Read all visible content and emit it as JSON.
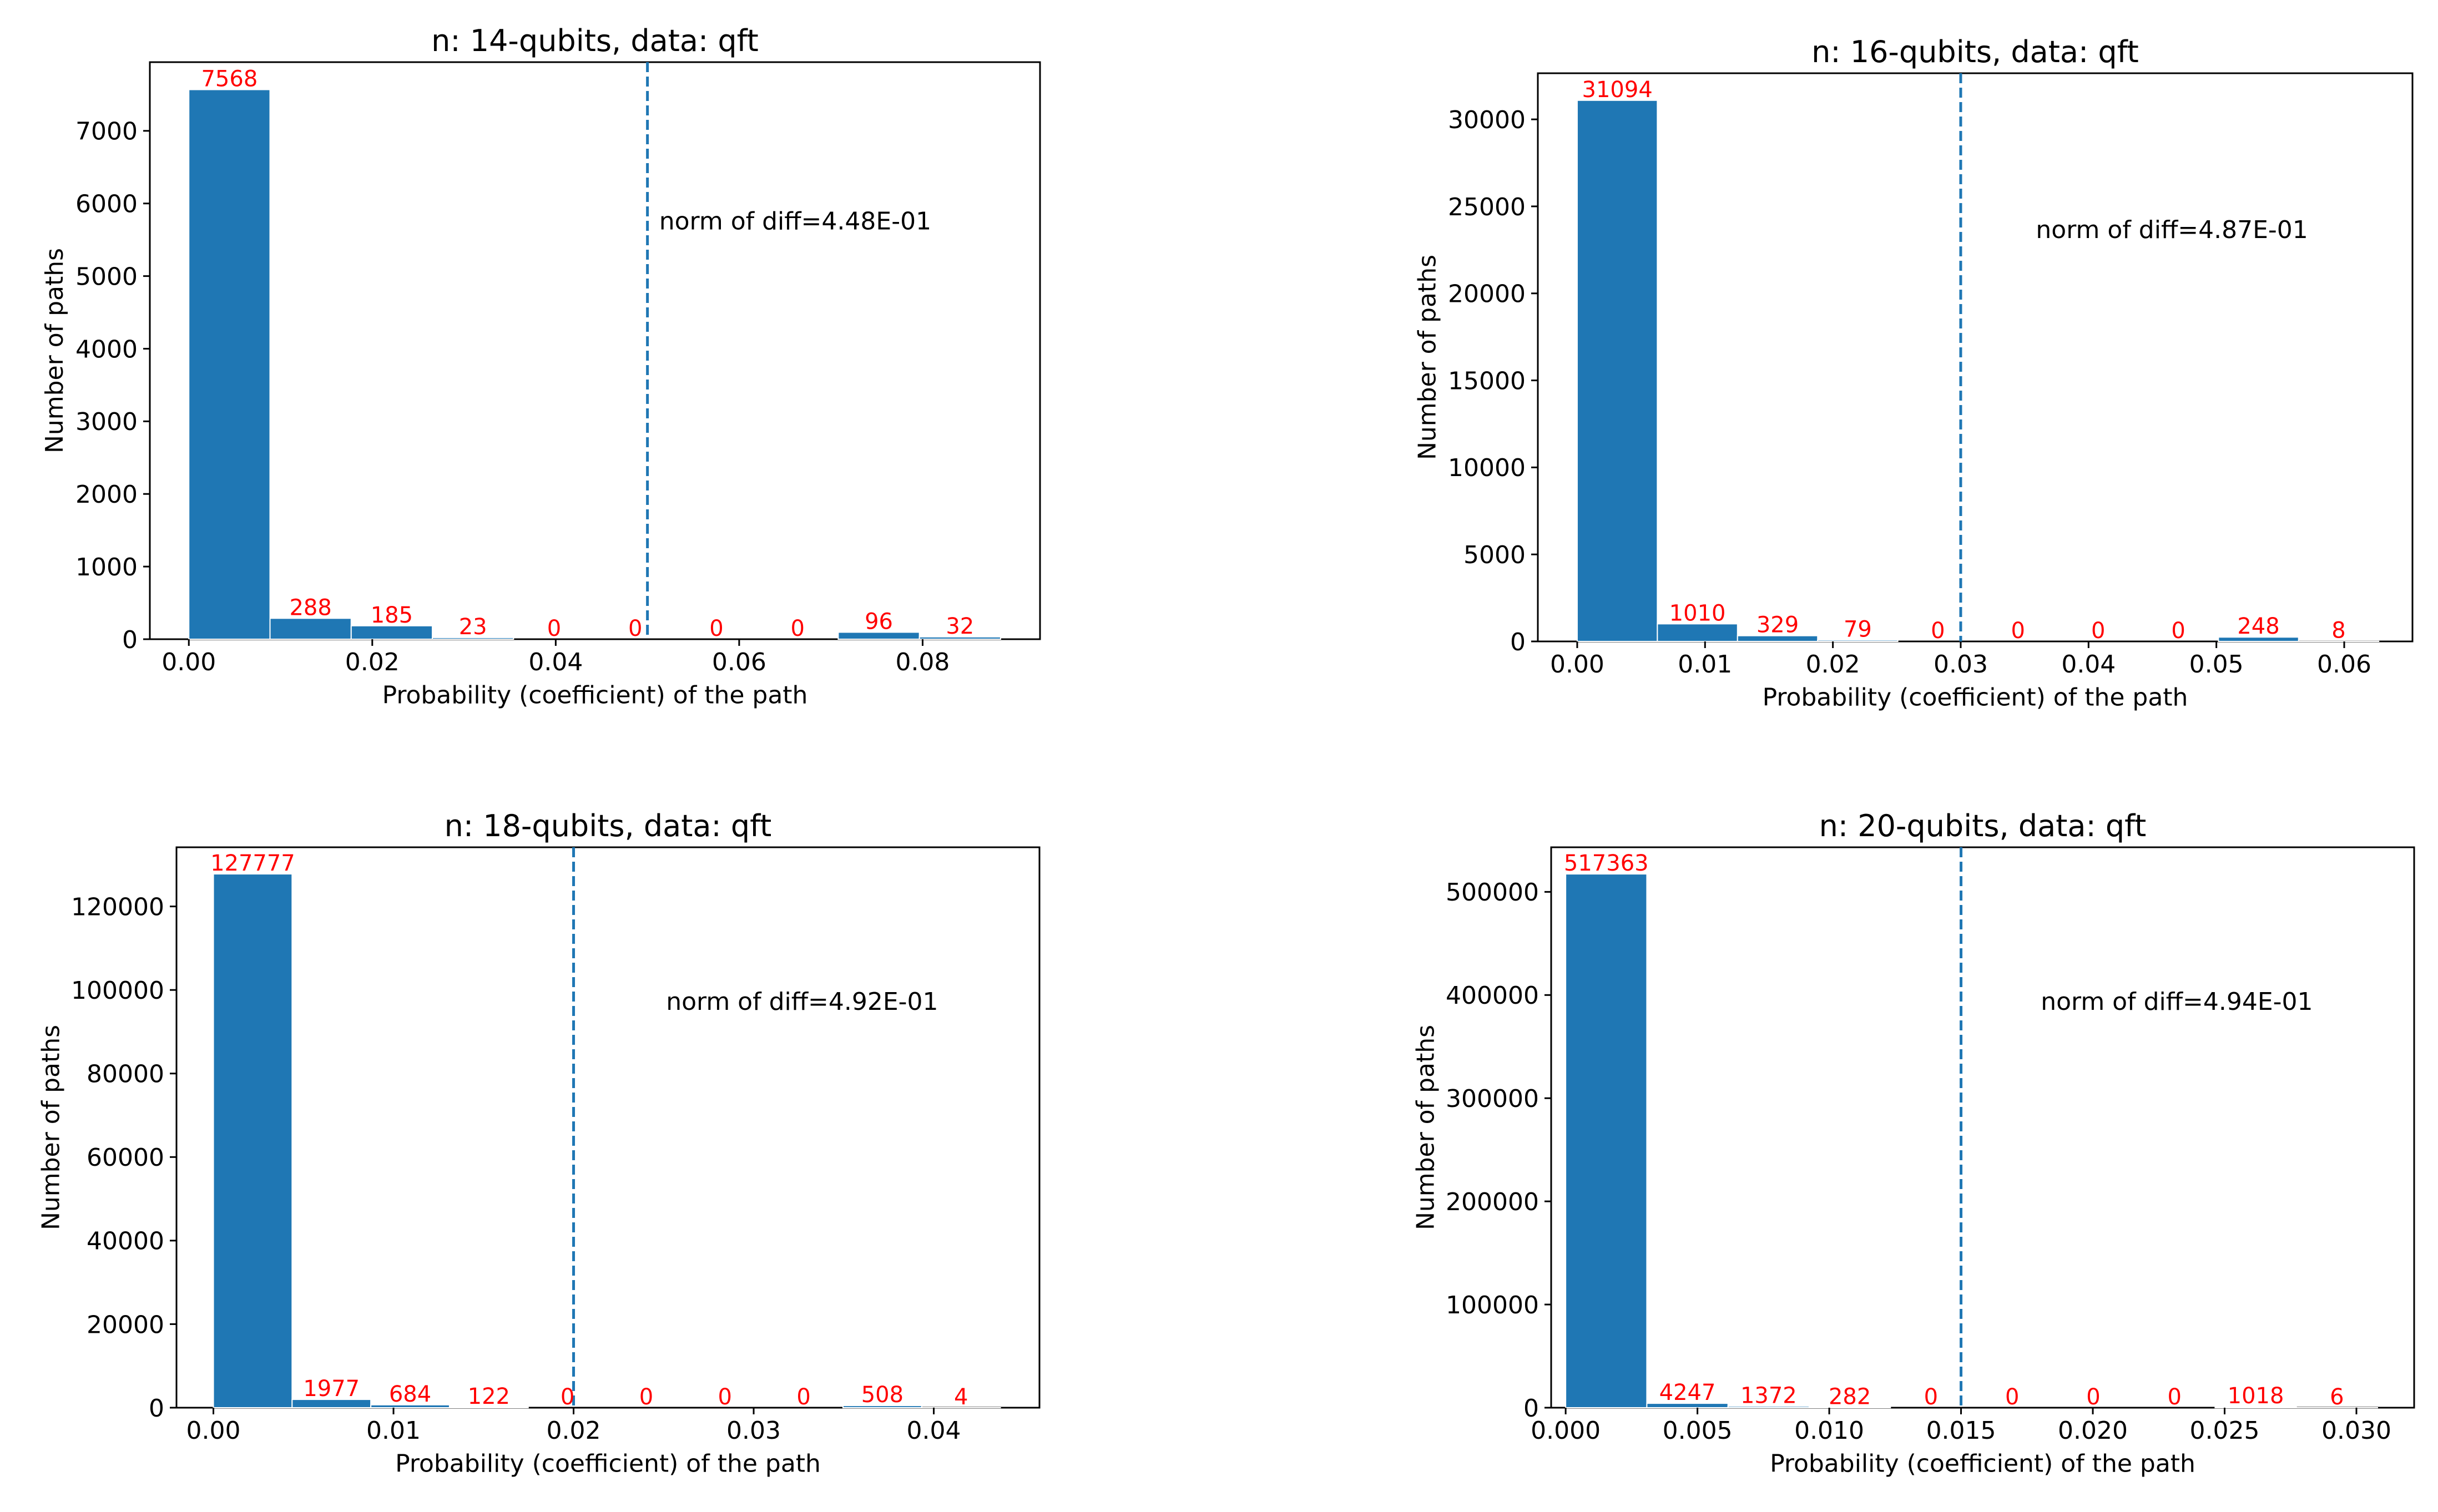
{
  "chart_data": [
    {
      "type": "bar",
      "title": "n: 14-qubits, data: qft",
      "xlabel": "Probability (coefficient) of the path",
      "ylabel": "Number of paths",
      "bin_edges": [
        0.0,
        0.00885,
        0.0177,
        0.02655,
        0.0354,
        0.04425,
        0.0531,
        0.06195,
        0.0708,
        0.07965,
        0.0885
      ],
      "values": [
        7568,
        288,
        185,
        23,
        0,
        0,
        0,
        0,
        96,
        32
      ],
      "value_labels": [
        "7568",
        "288",
        "185",
        "23",
        "0",
        "0",
        "0",
        "0",
        "96",
        "32"
      ],
      "xlim": [
        -0.00425,
        0.0928
      ],
      "ylim": [
        0,
        7946
      ],
      "xticks": [
        0.0,
        0.02,
        0.04,
        0.06,
        0.08
      ],
      "xtick_labels": [
        "0.00",
        "0.02",
        "0.04",
        "0.06",
        "0.08"
      ],
      "yticks": [
        0,
        1000,
        2000,
        3000,
        4000,
        5000,
        6000,
        7000
      ],
      "ytick_labels": [
        "0",
        "1000",
        "2000",
        "3000",
        "4000",
        "5000",
        "6000",
        "7000"
      ],
      "threshold": 0.05,
      "annotation": "norm of diff=4.48E-01"
    },
    {
      "type": "bar",
      "title": "n: 16-qubits, data: qft",
      "xlabel": "Probability (coefficient) of the path",
      "ylabel": "Number of paths",
      "bin_edges": [
        0.0,
        0.00627,
        0.01254,
        0.01881,
        0.02508,
        0.03135,
        0.03762,
        0.04389,
        0.05016,
        0.05643,
        0.0627
      ],
      "values": [
        31094,
        1010,
        329,
        79,
        0,
        0,
        0,
        0,
        248,
        8
      ],
      "value_labels": [
        "31094",
        "1010",
        "329",
        "79",
        "0",
        "0",
        "0",
        "0",
        "248",
        "8"
      ],
      "xlim": [
        -0.00308,
        0.06534
      ],
      "ylim": [
        0,
        32650
      ],
      "xticks": [
        0.0,
        0.01,
        0.02,
        0.03,
        0.04,
        0.05,
        0.06
      ],
      "xtick_labels": [
        "0.00",
        "0.01",
        "0.02",
        "0.03",
        "0.04",
        "0.05",
        "0.06"
      ],
      "yticks": [
        0,
        5000,
        10000,
        15000,
        20000,
        25000,
        30000
      ],
      "ytick_labels": [
        "0",
        "5000",
        "10000",
        "15000",
        "20000",
        "25000",
        "30000"
      ],
      "threshold": 0.03,
      "annotation": "norm of diff=4.87E-01"
    },
    {
      "type": "bar",
      "title": "n: 18-qubits, data: qft",
      "xlabel": "Probability (coefficient) of the path",
      "ylabel": "Number of paths",
      "bin_edges": [
        0.0,
        0.00437,
        0.00874,
        0.01311,
        0.01748,
        0.02185,
        0.02622,
        0.03059,
        0.03496,
        0.03933,
        0.0437
      ],
      "values": [
        127777,
        1977,
        684,
        122,
        0,
        0,
        0,
        0,
        508,
        4
      ],
      "value_labels": [
        "127777",
        "1977",
        "684",
        "122",
        "0",
        "0",
        "0",
        "0",
        "508",
        "4"
      ],
      "xlim": [
        -0.00205,
        0.04587
      ],
      "ylim": [
        0,
        134160
      ],
      "xticks": [
        0.0,
        0.01,
        0.02,
        0.03,
        0.04
      ],
      "xtick_labels": [
        "0.00",
        "0.01",
        "0.02",
        "0.03",
        "0.04"
      ],
      "yticks": [
        0,
        20000,
        40000,
        60000,
        80000,
        100000,
        120000
      ],
      "ytick_labels": [
        "0",
        "20000",
        "40000",
        "60000",
        "80000",
        "100000",
        "120000"
      ],
      "threshold": 0.02,
      "annotation": "norm of diff=4.92E-01"
    },
    {
      "type": "bar",
      "title": "n: 20-qubits, data: qft",
      "xlabel": "Probability (coefficient) of the path",
      "ylabel": "Number of paths",
      "bin_edges": [
        0.0,
        0.00308,
        0.00616,
        0.00924,
        0.01232,
        0.0154,
        0.01848,
        0.02156,
        0.02464,
        0.02772,
        0.0308
      ],
      "values": [
        517363,
        4247,
        1372,
        282,
        0,
        0,
        0,
        0,
        1018,
        6
      ],
      "value_labels": [
        "517363",
        "4247",
        "1372",
        "282",
        "0",
        "0",
        "0",
        "0",
        "1018",
        "6"
      ],
      "xlim": [
        -0.00055,
        0.03219
      ],
      "ylim": [
        0,
        543230
      ],
      "xticks": [
        0.0,
        0.005,
        0.01,
        0.015,
        0.02,
        0.025,
        0.03
      ],
      "xtick_labels": [
        "0.000",
        "0.005",
        "0.010",
        "0.015",
        "0.020",
        "0.025",
        "0.030"
      ],
      "yticks": [
        0,
        100000,
        200000,
        300000,
        400000,
        500000
      ],
      "ytick_labels": [
        "0",
        "100000",
        "200000",
        "300000",
        "400000",
        "500000"
      ],
      "threshold": 0.015,
      "annotation": "norm of diff=4.94E-01"
    }
  ],
  "colors": {
    "bar": "#1f77b4",
    "bar_edge": "#ffffff",
    "threshold_line": "#1f77b4",
    "value_label": "#ff0000",
    "axis": "#000000",
    "text": "#000000",
    "background": "#ffffff"
  }
}
